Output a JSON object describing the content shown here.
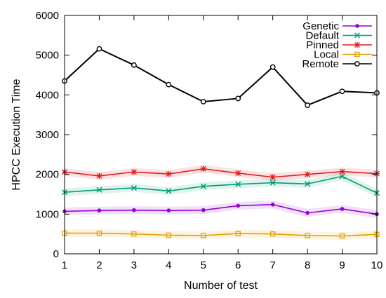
{
  "chart_data": {
    "type": "line",
    "xlabel": "Number of test",
    "ylabel": "HPCC Execution Time",
    "x": [
      1,
      2,
      3,
      4,
      5,
      6,
      7,
      8,
      9,
      10
    ],
    "xlim": [
      1,
      10
    ],
    "ylim": [
      0,
      6000
    ],
    "xticks": [
      "1",
      "2",
      "3",
      "4",
      "5",
      "6",
      "7",
      "8",
      "9",
      "10"
    ],
    "yticks": [
      "0",
      "1000",
      "2000",
      "3000",
      "4000",
      "5000",
      "6000"
    ],
    "grid": false,
    "legend_position": "top-right",
    "series": [
      {
        "name": "Genetic",
        "color": "#9400d3",
        "marker": "dot",
        "values": [
          1070,
          1090,
          1100,
          1090,
          1100,
          1210,
          1240,
          1030,
          1130,
          1000
        ]
      },
      {
        "name": "Default",
        "color": "#009e73",
        "marker": "x",
        "values": [
          1550,
          1610,
          1660,
          1580,
          1700,
          1750,
          1790,
          1760,
          1950,
          1530
        ]
      },
      {
        "name": "Pinned",
        "color": "#e41a1c",
        "marker": "star",
        "values": [
          2060,
          1960,
          2060,
          2010,
          2140,
          2030,
          1930,
          2000,
          2070,
          2020
        ]
      },
      {
        "name": "Local",
        "color": "#e6a000",
        "marker": "square",
        "values": [
          520,
          520,
          500,
          470,
          460,
          510,
          500,
          460,
          450,
          490
        ]
      },
      {
        "name": "Remote",
        "color": "#000000",
        "marker": "circle",
        "values": [
          4350,
          5160,
          4750,
          4260,
          3830,
          3910,
          4700,
          3740,
          4090,
          4050
        ]
      }
    ]
  }
}
